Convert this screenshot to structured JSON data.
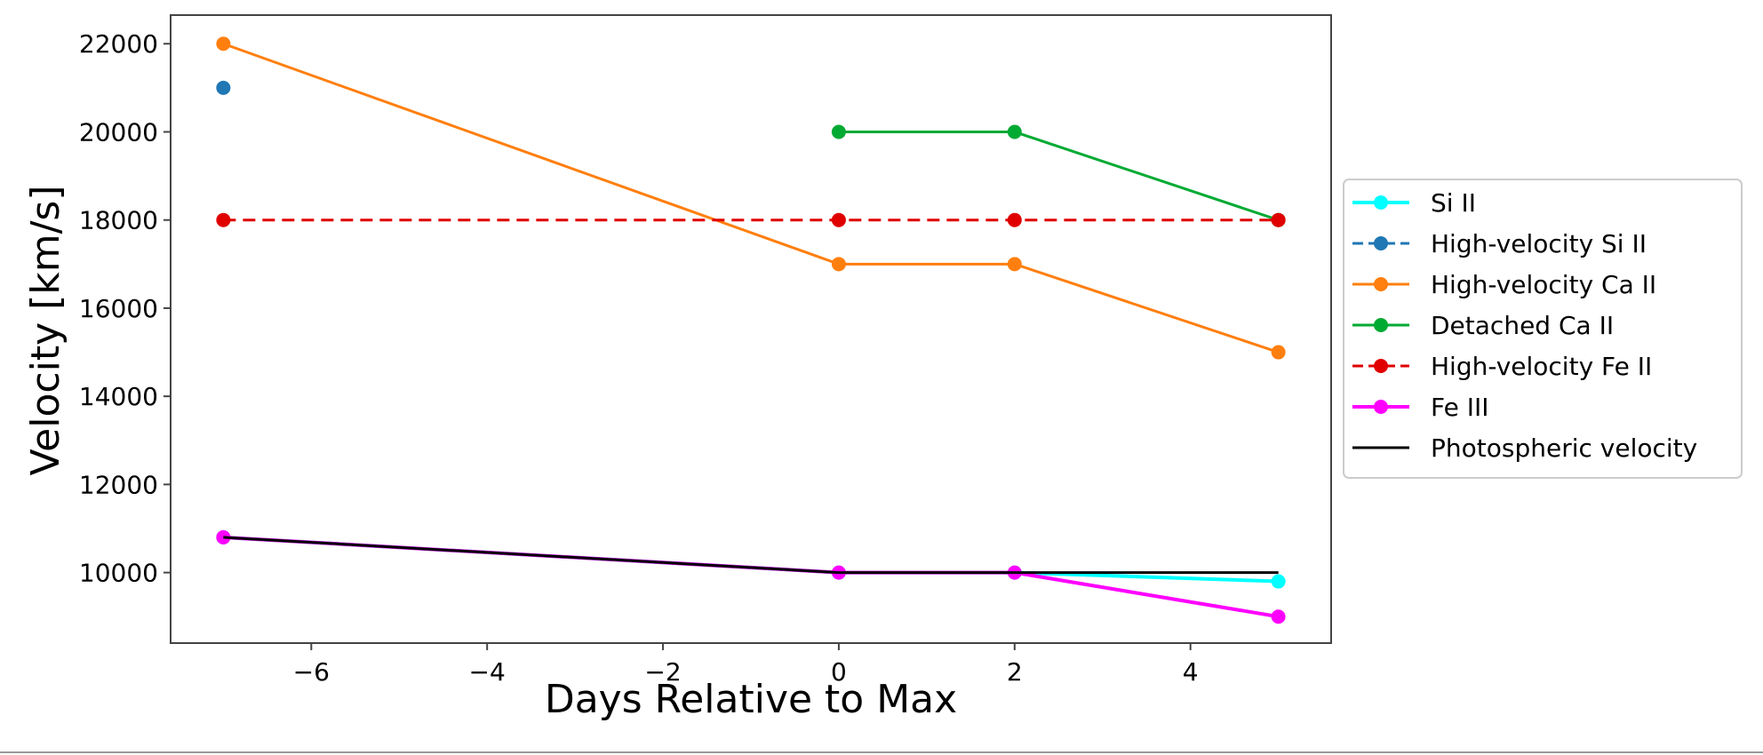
{
  "chart_data": {
    "type": "line",
    "title": "",
    "xlabel": "Days Relative to Max",
    "ylabel": "Velocity [km/s]",
    "xlim": [
      -7.6,
      5.6
    ],
    "ylim": [
      8400,
      22650
    ],
    "xticks": [
      -6,
      -4,
      -2,
      0,
      2,
      4
    ],
    "xtick_labels": [
      "−6",
      "−4",
      "−2",
      "0",
      "2",
      "4"
    ],
    "yticks": [
      10000,
      12000,
      14000,
      16000,
      18000,
      20000,
      22000
    ],
    "ytick_labels": [
      "10000",
      "12000",
      "14000",
      "16000",
      "18000",
      "20000",
      "22000"
    ],
    "grid": false,
    "legend_position": "right, outside plot",
    "series": [
      {
        "name": "Si II",
        "color": "#00ffff",
        "dash": "solid",
        "marker": true,
        "width": 4,
        "points": [
          [
            -7,
            10800
          ],
          [
            0,
            10000
          ],
          [
            2,
            10000
          ],
          [
            5,
            9800
          ]
        ]
      },
      {
        "name": "High-velocity Si II",
        "color": "#1f77b4",
        "dash": "dashed",
        "marker": true,
        "width": 3,
        "points": [
          [
            -7,
            21000
          ]
        ]
      },
      {
        "name": "High-velocity Ca II",
        "color": "#ff7f0e",
        "dash": "solid",
        "marker": true,
        "width": 3,
        "points": [
          [
            -7,
            22000
          ],
          [
            0,
            17000
          ],
          [
            2,
            17000
          ],
          [
            5,
            15000
          ]
        ]
      },
      {
        "name": "Detached Ca II",
        "color": "#00aa33",
        "dash": "solid",
        "marker": true,
        "width": 3,
        "points": [
          [
            0,
            20000
          ],
          [
            2,
            20000
          ],
          [
            5,
            18000
          ]
        ]
      },
      {
        "name": "High-velocity Fe II",
        "color": "#e00000",
        "dash": "dashed",
        "marker": true,
        "width": 3,
        "points": [
          [
            -7,
            18000
          ],
          [
            0,
            18000
          ],
          [
            2,
            18000
          ],
          [
            5,
            18000
          ]
        ]
      },
      {
        "name": "Fe III",
        "color": "#ff00ff",
        "dash": "solid",
        "marker": true,
        "width": 4,
        "points": [
          [
            -7,
            10800
          ],
          [
            0,
            10000
          ],
          [
            2,
            10000
          ],
          [
            5,
            9000
          ]
        ]
      },
      {
        "name": "Photospheric velocity",
        "color": "#000000",
        "dash": "solid",
        "marker": false,
        "width": 3,
        "points": [
          [
            -7,
            10800
          ],
          [
            0,
            10000
          ],
          [
            2,
            10000
          ],
          [
            5,
            10000
          ]
        ]
      }
    ]
  }
}
